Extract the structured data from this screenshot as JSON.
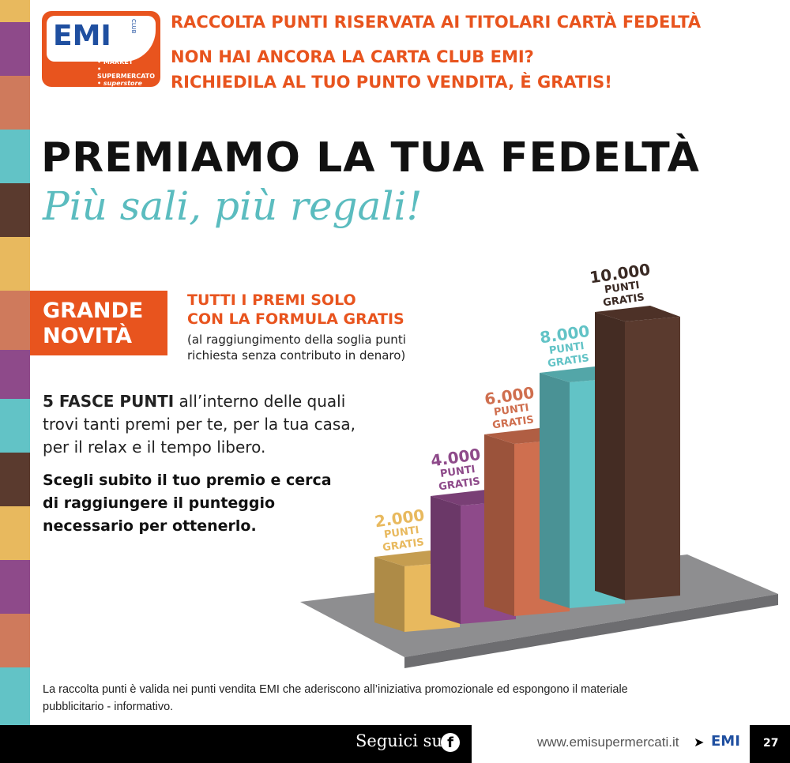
{
  "header": {
    "line1": "RACCOLTA PUNTI RISERVATA AI TITOLARI CARTÀ FEDELTÀ",
    "line2": "NON HAI ANCORA LA CARTA CLUB EMI?",
    "line3": "RICHIEDILA AL TUO PUNTO VENDITA, È GRATIS!"
  },
  "logo": {
    "brand": "EMI",
    "club": "CLUB",
    "formats": [
      "• MARKET",
      "• SUPERMERCATO",
      "• superstore"
    ]
  },
  "title": "PREMIAMO LA TUA FEDELTÀ",
  "tagline": "Più sali, più regali!",
  "badge": {
    "line1": "GRANDE",
    "line2": "NOVITÀ"
  },
  "promo": {
    "line1": "TUTTI I PREMI SOLO",
    "line2": "CON LA FORMULA GRATIS",
    "note1": "(al raggiungimento della soglia punti",
    "note2": "richiesta senza contributo in denaro)"
  },
  "desc": {
    "bold": "5 FASCE PUNTI",
    "rest": " all’interno delle quali",
    "line2": "trovi tanti premi per te, per la tua casa,",
    "line3": "per il relax e il tempo libero."
  },
  "cta": {
    "line1": "Scegli subito il tuo premio e cerca",
    "line2": "di raggiungere il punteggio",
    "line3": "necessario per ottenerlo."
  },
  "tiers": [
    {
      "points": "2.000",
      "label1": "PUNTI",
      "label2": "GRATIS",
      "color": "#e8b95e"
    },
    {
      "points": "4.000",
      "label1": "PUNTI",
      "label2": "GRATIS",
      "color": "#8e4a8a"
    },
    {
      "points": "6.000",
      "label1": "PUNTI",
      "label2": "GRATIS",
      "color": "#cf6f4f"
    },
    {
      "points": "8.000",
      "label1": "PUNTI",
      "label2": "GRATIS",
      "color": "#62c3c6"
    },
    {
      "points": "10.000",
      "label1": "PUNTI",
      "label2": "GRATIS",
      "color": "#5a3a2e"
    }
  ],
  "disclaimer1": "La raccolta punti è valida nei punti vendita EMI che aderiscono all’iniziativa promozionale ed espongono il materiale",
  "disclaimer2": "pubblicitario - informativo.",
  "footer": {
    "follow": "Seguici su",
    "facebook_icon": "f",
    "url": "www.emisupermercati.it",
    "brand": "EMI",
    "page": "27"
  },
  "colors": {
    "accent": "#e8541e",
    "teal": "#5bbcbf"
  }
}
